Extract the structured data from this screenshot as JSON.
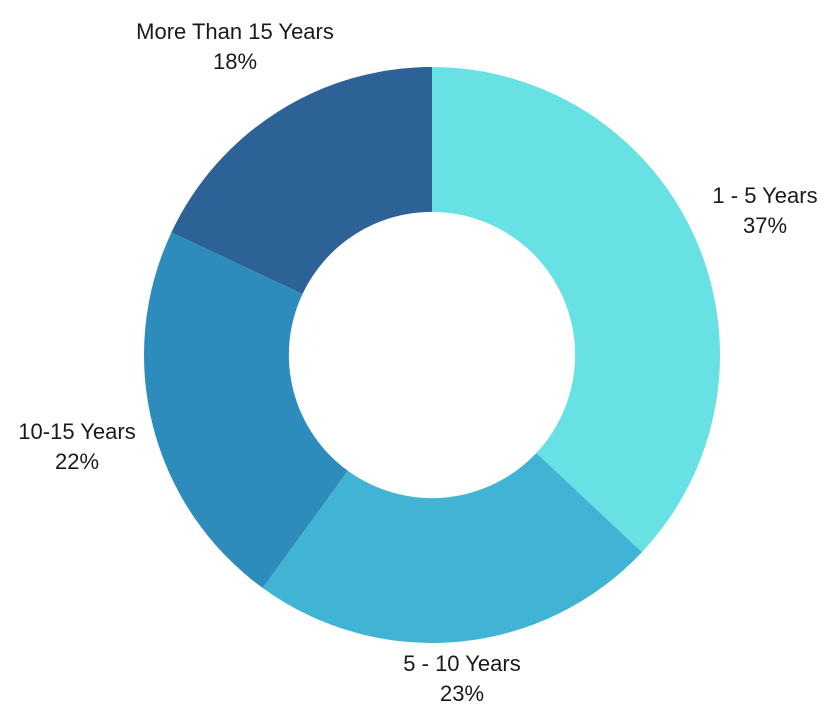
{
  "page": {
    "background_color": "#ffffff",
    "text_color": "#1a1a1a"
  },
  "chart_data": {
    "type": "pie",
    "subtype": "donut",
    "title": "",
    "direction": "clockwise",
    "start_angle_deg": 0,
    "inner_radius_ratio": 0.497,
    "legend_position": "none",
    "grid": false,
    "unit": "%",
    "categories": [
      "1 - 5 Years",
      "5 - 10 Years",
      "10-15 Years",
      "More Than 15 Years"
    ],
    "values": [
      37,
      23,
      22,
      18
    ],
    "slices": [
      {
        "label": "1 - 5 Years",
        "value": 37,
        "pct_label": "37%",
        "color": "#67e1e4"
      },
      {
        "label": "5 - 10 Years",
        "value": 23,
        "pct_label": "23%",
        "color": "#41b4d5"
      },
      {
        "label": "10-15 Years",
        "value": 22,
        "pct_label": "22%",
        "color": "#2e8cbd"
      },
      {
        "label": "More Than 15 Years",
        "value": 18,
        "pct_label": "18%",
        "color": "#2d6296"
      }
    ]
  }
}
